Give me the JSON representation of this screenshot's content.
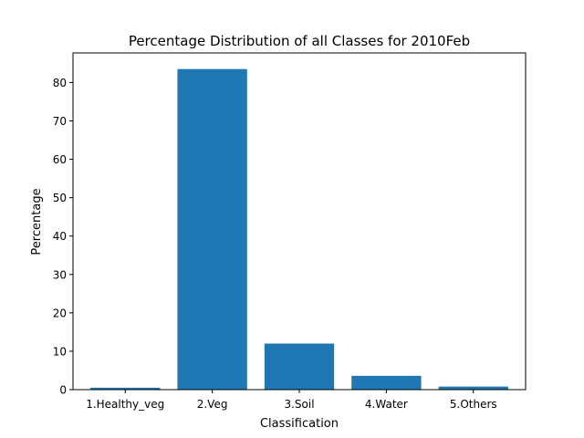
{
  "chart_data": {
    "type": "bar",
    "title": "Percentage Distribution of all Classes for 2010Feb",
    "xlabel": "Classification",
    "ylabel": "Percentage",
    "categories": [
      "1.Healthy_veg",
      "2.Veg",
      "3.Soil",
      "4.Water",
      "5.Others"
    ],
    "values": [
      0.5,
      83.5,
      12.0,
      3.6,
      0.8
    ],
    "ylim": [
      0,
      87.7
    ],
    "yticks": [
      "0",
      "10",
      "20",
      "30",
      "40",
      "50",
      "60",
      "70",
      "80"
    ],
    "bar_color": "#1f77b4",
    "grid": false
  }
}
